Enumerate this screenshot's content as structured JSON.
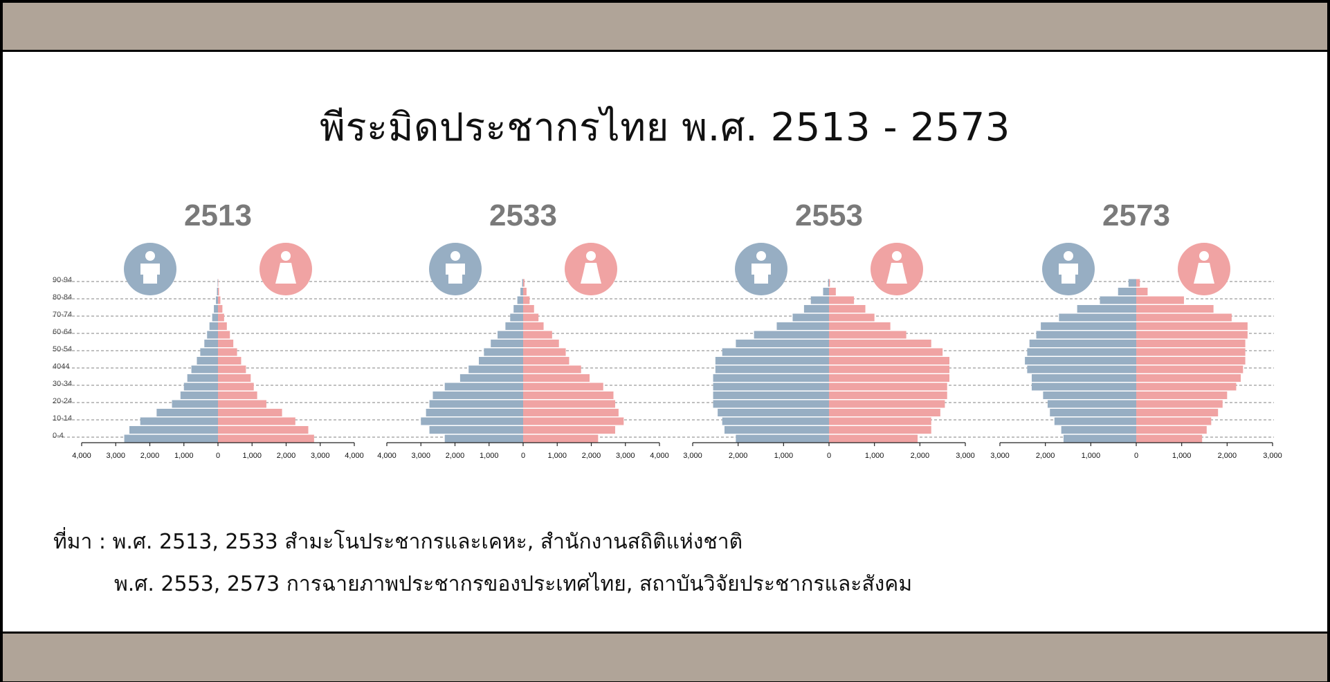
{
  "title": "พีระมิดประชากรไทย พ.ศ. 2513 - 2573",
  "source": {
    "line1": "ที่มา : พ.ศ. 2513, 2533 สำมะโนประชากรและเคหะ, สำนักงานสถิติแห่งชาติ",
    "line2": "พ.ศ. 2553, 2573 การฉายภาพประชากรของประเทศไทย, สถาบันวิจัยประชากรและสังคม"
  },
  "colors": {
    "male": "#97aec3",
    "female": "#f0a3a3",
    "band": "#b0a498",
    "year_label": "#7a7a7a",
    "grid": "#9a9a9a"
  },
  "icons": {
    "male": "male-person-icon",
    "female": "female-person-icon"
  },
  "chart_data": [
    {
      "type": "bar",
      "title": "2513",
      "x_tick_labels": [
        "4,000",
        "3,000",
        "2,000",
        "1,000",
        "0",
        "1,000",
        "2,000",
        "3,000",
        "4,000"
      ],
      "xlim": [
        -4000,
        4000
      ],
      "y_tick_labels": [
        "90-94",
        "80-84",
        "70-74",
        "60-64",
        "50-54",
        "4044",
        "30-34",
        "20-24",
        "10-14",
        "0-4"
      ],
      "grid": "dashed horizontal",
      "series": [
        {
          "values": [
            2750,
            2600,
            2280,
            1800,
            1350,
            1100,
            1000,
            900,
            780,
            620,
            520,
            400,
            320,
            250,
            170,
            120,
            60,
            30,
            10
          ]
        },
        {
          "values": [
            2820,
            2650,
            2270,
            1880,
            1420,
            1150,
            1050,
            960,
            820,
            680,
            560,
            450,
            350,
            260,
            180,
            130,
            70,
            30,
            10
          ]
        }
      ]
    },
    {
      "type": "bar",
      "title": "2533",
      "x_tick_labels": [
        "4,000",
        "3,000",
        "2,000",
        "1,000",
        "0",
        "1,000",
        "2,000",
        "3,000",
        "4,000"
      ],
      "xlim": [
        -4000,
        4000
      ],
      "y_tick_labels": [],
      "grid": "dashed horizontal",
      "series": [
        {
          "values": [
            2300,
            2750,
            3000,
            2850,
            2750,
            2650,
            2300,
            1850,
            1600,
            1300,
            1150,
            950,
            750,
            520,
            380,
            280,
            170,
            80,
            30
          ]
        },
        {
          "values": [
            2200,
            2700,
            2950,
            2800,
            2700,
            2650,
            2350,
            1950,
            1700,
            1350,
            1250,
            1050,
            850,
            600,
            450,
            320,
            190,
            100,
            40
          ]
        }
      ]
    },
    {
      "type": "bar",
      "title": "2553",
      "x_tick_labels": [
        "3,000",
        "2,000",
        "1,000",
        "0",
        "1,000",
        "2,000",
        "3,000"
      ],
      "xlim": [
        -3000,
        3000
      ],
      "y_tick_labels": [],
      "grid": "dashed horizontal",
      "series": [
        {
          "values": [
            2050,
            2300,
            2350,
            2450,
            2550,
            2550,
            2550,
            2550,
            2500,
            2500,
            2350,
            2050,
            1650,
            1150,
            800,
            550,
            400,
            130,
            20
          ]
        },
        {
          "values": [
            1950,
            2250,
            2250,
            2450,
            2550,
            2600,
            2600,
            2650,
            2650,
            2650,
            2500,
            2250,
            1700,
            1350,
            1000,
            800,
            550,
            150,
            20
          ]
        }
      ]
    },
    {
      "type": "bar",
      "title": "2573",
      "x_tick_labels": [
        "3,000",
        "2,000",
        "1,000",
        "0",
        "1,000",
        "2,000",
        "3,000"
      ],
      "xlim": [
        -3000,
        3000
      ],
      "y_tick_labels": [],
      "grid": "dashed horizontal",
      "series": [
        {
          "values": [
            1600,
            1650,
            1800,
            1900,
            1950,
            2050,
            2300,
            2300,
            2400,
            2450,
            2400,
            2350,
            2200,
            2100,
            1700,
            1300,
            800,
            400,
            170
          ]
        },
        {
          "values": [
            1450,
            1550,
            1650,
            1800,
            1900,
            2000,
            2200,
            2300,
            2350,
            2400,
            2400,
            2400,
            2450,
            2450,
            2100,
            1700,
            1050,
            250,
            80
          ]
        }
      ]
    }
  ]
}
